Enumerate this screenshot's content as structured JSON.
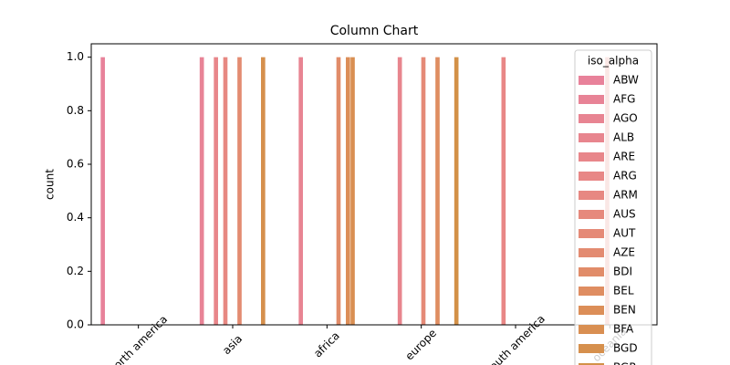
{
  "chart_data": {
    "type": "bar",
    "title": "Column Chart",
    "y_label": "count",
    "categories": [
      "north america",
      "asia",
      "africa",
      "europe",
      "south america",
      "oceania"
    ],
    "legend_title": "iso_alpha",
    "series": [
      {
        "name": "ABW",
        "color": "#e8829a",
        "values": [
          1,
          0,
          0,
          0,
          0,
          0
        ]
      },
      {
        "name": "AFG",
        "color": "#e88396",
        "values": [
          0,
          1,
          0,
          0,
          0,
          0
        ]
      },
      {
        "name": "AGO",
        "color": "#e88492",
        "values": [
          0,
          0,
          1,
          0,
          0,
          0
        ]
      },
      {
        "name": "ALB",
        "color": "#e8858e",
        "values": [
          0,
          0,
          0,
          1,
          0,
          0
        ]
      },
      {
        "name": "ARE",
        "color": "#e8868a",
        "values": [
          0,
          1,
          0,
          0,
          0,
          0
        ]
      },
      {
        "name": "ARG",
        "color": "#e88786",
        "values": [
          0,
          0,
          0,
          0,
          1,
          0
        ]
      },
      {
        "name": "ARM",
        "color": "#e78882",
        "values": [
          0,
          1,
          0,
          0,
          0,
          0
        ]
      },
      {
        "name": "AUS",
        "color": "#e6897c",
        "values": [
          0,
          0,
          0,
          0,
          0,
          1
        ]
      },
      {
        "name": "AUT",
        "color": "#e58a77",
        "values": [
          0,
          0,
          0,
          1,
          0,
          0
        ]
      },
      {
        "name": "AZE",
        "color": "#e38b71",
        "values": [
          0,
          1,
          0,
          0,
          0,
          0
        ]
      },
      {
        "name": "BDI",
        "color": "#e18c69",
        "values": [
          0,
          0,
          1,
          0,
          0,
          0
        ]
      },
      {
        "name": "BEL",
        "color": "#df8d61",
        "values": [
          0,
          0,
          0,
          1,
          0,
          0
        ]
      },
      {
        "name": "BEN",
        "color": "#dc8e58",
        "values": [
          0,
          0,
          1,
          0,
          0,
          0
        ]
      },
      {
        "name": "BFA",
        "color": "#d98f52",
        "values": [
          0,
          0,
          1,
          0,
          0,
          0
        ]
      },
      {
        "name": "BGD",
        "color": "#d6904d",
        "values": [
          0,
          1,
          0,
          0,
          0,
          0
        ]
      },
      {
        "name": "BGR",
        "color": "#d39148",
        "values": [
          0,
          0,
          0,
          1,
          0,
          0
        ]
      }
    ],
    "ylim": [
      0,
      1.05
    ],
    "yticks": [
      {
        "value": 0,
        "label": "0.0"
      },
      {
        "value": 0.2,
        "label": "0.2"
      },
      {
        "value": 0.4,
        "label": "0.4"
      },
      {
        "value": 0.6,
        "label": "0.6"
      },
      {
        "value": 0.8,
        "label": "0.8"
      },
      {
        "value": 1,
        "label": "1.0"
      }
    ]
  }
}
